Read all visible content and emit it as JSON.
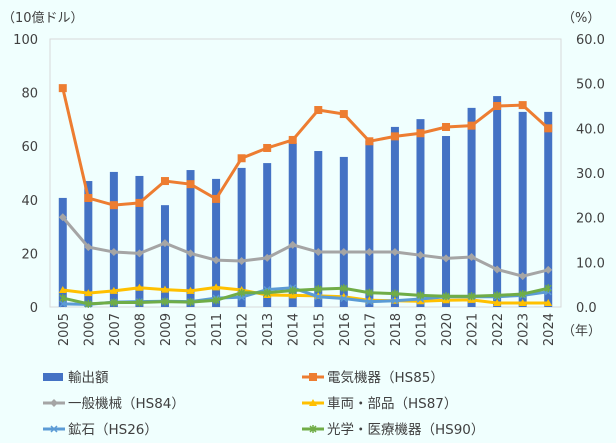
{
  "chart_data": {
    "type": "bar+line",
    "left_axis_unit": "（10億ドル）",
    "right_axis_unit": "（%）",
    "x_unit": "（年）",
    "left_ylim": [
      0,
      100
    ],
    "left_ticks": [
      "0",
      "20",
      "40",
      "60",
      "80",
      "100"
    ],
    "right_ylim": [
      0,
      60
    ],
    "right_ticks": [
      "0.0",
      "10.0",
      "20.0",
      "30.0",
      "40.0",
      "50.0",
      "60.0"
    ],
    "grid": false,
    "legend_position": "bottom",
    "categories": [
      "2005",
      "2006",
      "2007",
      "2008",
      "2009",
      "2010",
      "2011",
      "2012",
      "2013",
      "2014",
      "2015",
      "2016",
      "2017",
      "2018",
      "2019",
      "2020",
      "2021",
      "2022",
      "2023",
      "2024"
    ],
    "bar_series": {
      "name": "輸出額",
      "axis": "left",
      "color": "#4472c4",
      "values": [
        40.7,
        47,
        50.4,
        48.9,
        38,
        51.1,
        47.8,
        51.9,
        53.7,
        61.2,
        58.2,
        56,
        62,
        67.2,
        70.1,
        63.8,
        74.3,
        78.7,
        72.8,
        72.8
      ]
    },
    "line_series": [
      {
        "name": "電気機器（HS85）",
        "axis": "right",
        "color": "#ed7d31",
        "marker": "square",
        "values": [
          49,
          24.4,
          22.8,
          23.3,
          28.2,
          27.5,
          24.2,
          33.3,
          35.6,
          37.4,
          44.1,
          43.2,
          37.1,
          38.2,
          38.9,
          40.3,
          40.6,
          45,
          45.2,
          40
        ]
      },
      {
        "name": "一般機械（HS84）",
        "axis": "right",
        "color": "#a5a5a5",
        "marker": "diamond",
        "values": [
          20.1,
          13.4,
          12.3,
          12,
          14.3,
          12,
          10.5,
          10.3,
          11,
          13.9,
          12.3,
          12.3,
          12.3,
          12.3,
          11.6,
          10.9,
          11.2,
          8.4,
          6.9,
          8.3
        ]
      },
      {
        "name": "車両・部品（HS87）",
        "axis": "right",
        "color": "#ffc000",
        "marker": "triangle",
        "values": [
          3.8,
          3.1,
          3.6,
          4.3,
          3.9,
          3.6,
          4.4,
          3.8,
          2.7,
          2.6,
          2.5,
          2.3,
          1.5,
          1.4,
          1.3,
          1.5,
          1.6,
          0.9,
          0.9,
          0.9
        ]
      },
      {
        "name": "鉱石（HS26）",
        "axis": "right",
        "color": "#5b9bd5",
        "marker": "x",
        "values": [
          0.7,
          0.6,
          1.1,
          1.2,
          1.3,
          1.2,
          2.0,
          2.2,
          3.9,
          4.3,
          2.3,
          1.9,
          1.2,
          1.4,
          1.8,
          2.3,
          2.3,
          2.3,
          2.6,
          3.4
        ]
      },
      {
        "name": "光学・医療機器（HS90）",
        "axis": "right",
        "color": "#70ad47",
        "marker": "star",
        "values": [
          2.0,
          0.7,
          1.0,
          1.0,
          1.2,
          1.1,
          1.5,
          3.2,
          3.2,
          3.7,
          4.0,
          4.2,
          3.2,
          3.0,
          2.6,
          2.4,
          2.4,
          2.6,
          2.9,
          4.2
        ]
      }
    ]
  }
}
